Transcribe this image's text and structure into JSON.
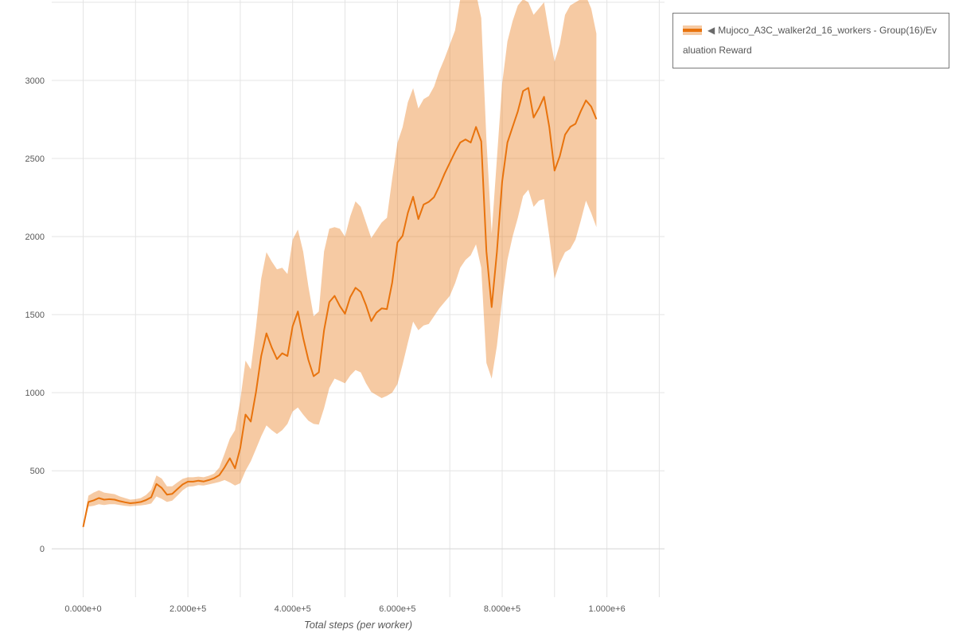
{
  "colors": {
    "accent": "#e8730d",
    "band_fill": "#e8730d",
    "grid": "#e4e4e4",
    "text": "#595959",
    "legend_border": "#7a7a7a",
    "background": "#ffffff"
  },
  "legend": {
    "marker": "◀",
    "label": "Mujoco_A3C_walker2d_16_workers - Group(16)/Evaluation Reward"
  },
  "chart_data": {
    "type": "line",
    "title": "",
    "xlabel": "Total steps (per worker)",
    "ylabel": "",
    "grid": true,
    "legend_position": "top-right",
    "x_range": [
      -60000,
      1110000
    ],
    "y_range": [
      -310,
      3515
    ],
    "x_grid_step": 100000,
    "x_grid_max": 1100000,
    "y_grid_step": 500,
    "y_grid_max": 3500,
    "x_ticks": [
      {
        "value": 0,
        "label": "0.000e+0"
      },
      {
        "value": 200000,
        "label": "2.000e+5"
      },
      {
        "value": 400000,
        "label": "4.000e+5"
      },
      {
        "value": 600000,
        "label": "6.000e+5"
      },
      {
        "value": 800000,
        "label": "8.000e+5"
      },
      {
        "value": 1000000,
        "label": "1.000e+6"
      }
    ],
    "y_ticks": [
      0,
      500,
      1000,
      1500,
      2000,
      2500,
      3000
    ],
    "series": [
      {
        "name": "Mujoco_A3C_walker2d_16_workers - Group(16)/Evaluation Reward",
        "color": "#e8730d",
        "band_opacity": 0.38,
        "x": [
          0,
          10000,
          20000,
          30000,
          40000,
          50000,
          60000,
          70000,
          80000,
          90000,
          100000,
          110000,
          120000,
          130000,
          140000,
          150000,
          160000,
          170000,
          180000,
          190000,
          200000,
          210000,
          220000,
          230000,
          240000,
          250000,
          260000,
          270000,
          280000,
          290000,
          300000,
          310000,
          320000,
          330000,
          340000,
          350000,
          360000,
          370000,
          380000,
          390000,
          400000,
          410000,
          420000,
          430000,
          440000,
          450000,
          460000,
          470000,
          480000,
          490000,
          500000,
          510000,
          520000,
          530000,
          540000,
          550000,
          560000,
          570000,
          580000,
          590000,
          600000,
          610000,
          620000,
          630000,
          640000,
          650000,
          660000,
          670000,
          680000,
          690000,
          700000,
          710000,
          720000,
          730000,
          740000,
          750000,
          760000,
          770000,
          780000,
          790000,
          800000,
          810000,
          820000,
          830000,
          840000,
          850000,
          860000,
          870000,
          880000,
          890000,
          900000,
          910000,
          920000,
          930000,
          940000,
          950000,
          960000,
          970000,
          980000
        ],
        "mean": [
          140,
          300,
          310,
          325,
          315,
          318,
          315,
          305,
          298,
          292,
          295,
          300,
          312,
          330,
          415,
          390,
          347,
          352,
          382,
          412,
          430,
          430,
          436,
          431,
          440,
          452,
          472,
          522,
          580,
          515,
          645,
          860,
          815,
          1005,
          1235,
          1380,
          1290,
          1215,
          1252,
          1235,
          1425,
          1520,
          1352,
          1210,
          1105,
          1130,
          1400,
          1580,
          1620,
          1555,
          1505,
          1612,
          1672,
          1645,
          1560,
          1458,
          1512,
          1540,
          1535,
          1705,
          1962,
          2005,
          2152,
          2255,
          2112,
          2205,
          2222,
          2252,
          2322,
          2402,
          2472,
          2542,
          2602,
          2622,
          2602,
          2702,
          2610,
          1905,
          1548,
          1902,
          2352,
          2602,
          2702,
          2802,
          2932,
          2952,
          2762,
          2822,
          2895,
          2702,
          2422,
          2515,
          2652,
          2702,
          2722,
          2802,
          2872,
          2832,
          2752
        ],
        "lower": [
          130,
          270,
          275,
          285,
          280,
          285,
          285,
          280,
          275,
          272,
          275,
          278,
          282,
          290,
          335,
          320,
          300,
          308,
          340,
          375,
          398,
          400,
          408,
          405,
          412,
          420,
          428,
          440,
          425,
          405,
          420,
          500,
          560,
          640,
          720,
          790,
          760,
          735,
          760,
          800,
          880,
          905,
          860,
          820,
          800,
          795,
          900,
          1030,
          1090,
          1075,
          1060,
          1110,
          1145,
          1130,
          1060,
          1005,
          985,
          965,
          980,
          1000,
          1055,
          1180,
          1320,
          1455,
          1400,
          1430,
          1440,
          1490,
          1540,
          1580,
          1620,
          1700,
          1800,
          1850,
          1880,
          1950,
          1800,
          1190,
          1090,
          1300,
          1600,
          1850,
          2000,
          2120,
          2260,
          2300,
          2190,
          2230,
          2240,
          2000,
          1730,
          1830,
          1900,
          1920,
          1980,
          2100,
          2230,
          2150,
          2060
        ],
        "upper": [
          150,
          340,
          360,
          375,
          360,
          355,
          350,
          335,
          325,
          315,
          318,
          325,
          345,
          378,
          470,
          450,
          400,
          400,
          425,
          448,
          458,
          458,
          462,
          458,
          468,
          482,
          520,
          610,
          705,
          760,
          950,
          1205,
          1150,
          1420,
          1730,
          1900,
          1840,
          1790,
          1800,
          1760,
          1980,
          2045,
          1905,
          1680,
          1490,
          1520,
          1905,
          2050,
          2060,
          2050,
          2000,
          2130,
          2225,
          2190,
          2090,
          1990,
          2040,
          2090,
          2120,
          2370,
          2600,
          2700,
          2860,
          2950,
          2820,
          2880,
          2900,
          2960,
          3060,
          3140,
          3230,
          3320,
          3520,
          3540,
          3560,
          3560,
          3400,
          2620,
          2020,
          2500,
          2980,
          3250,
          3380,
          3480,
          3520,
          3500,
          3420,
          3460,
          3500,
          3300,
          3120,
          3230,
          3420,
          3480,
          3500,
          3520,
          3540,
          3460,
          3300
        ]
      }
    ]
  }
}
